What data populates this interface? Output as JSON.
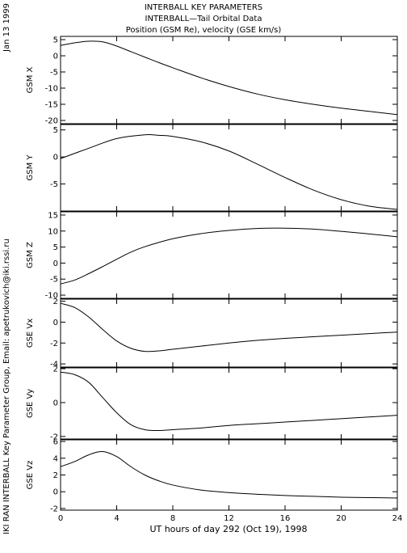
{
  "header": {
    "line1": "INTERBALL KEY PARAMETERS",
    "line2": "INTERBALL—Tail Orbital Data",
    "line3": "Position (GSM Re), velocity (GSE km/s)"
  },
  "date_stamp": "Jan 13 1999",
  "side_credit": "IKI RAN INTERBALL Key Parameter Group, Email: apetrukovich@iki.rssi.ru",
  "colors": {
    "line": "#000000",
    "background": "#ffffff"
  },
  "chart_data": [
    {
      "type": "line",
      "ylabel": "GSM X",
      "ylim": [
        -21,
        6
      ],
      "yticks": [
        5,
        0,
        -5,
        -10,
        -15,
        -20
      ],
      "xlim": [
        0,
        24
      ],
      "series": [
        {
          "x": [
            0,
            1,
            2,
            3,
            4,
            5,
            6,
            7,
            8,
            10,
            12,
            14,
            16,
            18,
            20,
            22,
            24
          ],
          "y": [
            3.2,
            4.0,
            4.5,
            4.3,
            3.0,
            1.3,
            -0.4,
            -2.1,
            -3.7,
            -6.8,
            -9.5,
            -11.8,
            -13.6,
            -15.0,
            -16.2,
            -17.2,
            -18.2
          ]
        }
      ]
    },
    {
      "type": "line",
      "ylabel": "GSM Y",
      "ylim": [
        -10,
        6
      ],
      "yticks": [
        5,
        0,
        -5
      ],
      "xlim": [
        0,
        24
      ],
      "series": [
        {
          "x": [
            0,
            2,
            4,
            6,
            7,
            8,
            10,
            12,
            14,
            16,
            18,
            20,
            22,
            24
          ],
          "y": [
            -0.3,
            1.6,
            3.4,
            4.1,
            4.0,
            3.8,
            2.8,
            1.1,
            -1.3,
            -3.8,
            -6.1,
            -7.9,
            -9.1,
            -9.7
          ]
        }
      ]
    },
    {
      "type": "line",
      "ylabel": "GSM Z",
      "ylim": [
        -11,
        16
      ],
      "yticks": [
        15,
        10,
        5,
        0,
        -5,
        -10
      ],
      "xlim": [
        0,
        24
      ],
      "series": [
        {
          "x": [
            0,
            1,
            2,
            3,
            4,
            5,
            6,
            8,
            10,
            12,
            14,
            16,
            18,
            20,
            22,
            24
          ],
          "y": [
            -6.5,
            -5.3,
            -3.3,
            -1.1,
            1.2,
            3.4,
            5.1,
            7.6,
            9.2,
            10.2,
            10.8,
            10.9,
            10.6,
            9.9,
            9.1,
            8.2
          ]
        }
      ]
    },
    {
      "type": "line",
      "ylabel": "GSE Vx",
      "ylim": [
        -4.3,
        2.2
      ],
      "yticks": [
        2,
        0,
        -2,
        -4
      ],
      "xlim": [
        0,
        24
      ],
      "series": [
        {
          "x": [
            0,
            1,
            2,
            3,
            4,
            5,
            6,
            7,
            8,
            10,
            12,
            14,
            16,
            18,
            20,
            22,
            24
          ],
          "y": [
            1.8,
            1.4,
            0.5,
            -0.7,
            -1.8,
            -2.5,
            -2.8,
            -2.75,
            -2.6,
            -2.3,
            -2.0,
            -1.75,
            -1.55,
            -1.4,
            -1.25,
            -1.1,
            -0.95
          ]
        }
      ]
    },
    {
      "type": "line",
      "ylabel": "GSE Vy",
      "ylim": [
        -2.15,
        2.05
      ],
      "yticks": [
        2,
        0,
        -2
      ],
      "xlim": [
        0,
        24
      ],
      "series": [
        {
          "x": [
            0,
            1,
            2,
            3,
            4,
            5,
            6,
            7,
            8,
            10,
            12,
            14,
            16,
            18,
            20,
            22,
            24
          ],
          "y": [
            1.8,
            1.65,
            1.2,
            0.3,
            -0.6,
            -1.3,
            -1.6,
            -1.65,
            -1.6,
            -1.5,
            -1.35,
            -1.25,
            -1.15,
            -1.05,
            -0.95,
            -0.85,
            -0.75
          ]
        }
      ]
    },
    {
      "type": "line",
      "ylabel": "GSE Vz",
      "ylim": [
        -2.2,
        6.2
      ],
      "yticks": [
        6,
        4,
        2,
        0,
        -2
      ],
      "xlim": [
        0,
        24
      ],
      "series": [
        {
          "x": [
            0,
            1,
            2,
            3,
            4,
            5,
            6,
            7,
            8,
            10,
            12,
            14,
            16,
            18,
            20,
            22,
            24
          ],
          "y": [
            3.0,
            3.6,
            4.4,
            4.8,
            4.2,
            3.0,
            2.0,
            1.3,
            0.8,
            0.2,
            -0.1,
            -0.3,
            -0.45,
            -0.55,
            -0.65,
            -0.7,
            -0.75
          ]
        }
      ]
    }
  ],
  "x_axis": {
    "ticks": [
      0,
      4,
      8,
      12,
      16,
      20,
      24
    ],
    "label": "UT hours of day 292 (Oct 19), 1998"
  }
}
